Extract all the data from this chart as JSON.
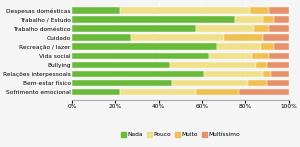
{
  "categories": [
    "Despesas domésticas",
    "Trabalho / Estudo",
    "Trabalho doméstico",
    "Cuidado",
    "Recreação / lazer",
    "Vida social",
    "Bullying",
    "Relações interpessoais",
    "Bem-estar físico",
    "Sofrimento emocional"
  ],
  "series": {
    "Nada": [
      22,
      75,
      57,
      27,
      67,
      63,
      45,
      61,
      46,
      22
    ],
    "Pouco": [
      60,
      13,
      27,
      43,
      20,
      20,
      40,
      27,
      35,
      35
    ],
    "Muito": [
      9,
      5,
      7,
      18,
      6,
      8,
      5,
      4,
      9,
      20
    ],
    "Multíssimo": [
      9,
      7,
      9,
      12,
      7,
      9,
      10,
      8,
      10,
      23
    ]
  },
  "colors": {
    "Nada": "#6aba3a",
    "Pouco": "#f0e08a",
    "Muito": "#f0c050",
    "Multíssimo": "#e8906a"
  },
  "xlim": [
    0,
    100
  ],
  "xtick_vals": [
    0,
    20,
    40,
    60,
    80,
    100
  ],
  "xtick_labels": [
    "0%",
    "20%",
    "40%",
    "60%",
    "80%",
    "100%"
  ],
  "figsize": [
    3.0,
    1.47
  ],
  "dpi": 100,
  "bar_height": 0.72,
  "label_fontsize": 4.2,
  "tick_fontsize": 4.2,
  "legend_fontsize": 4.2,
  "bg_color": "#f5f5f5"
}
